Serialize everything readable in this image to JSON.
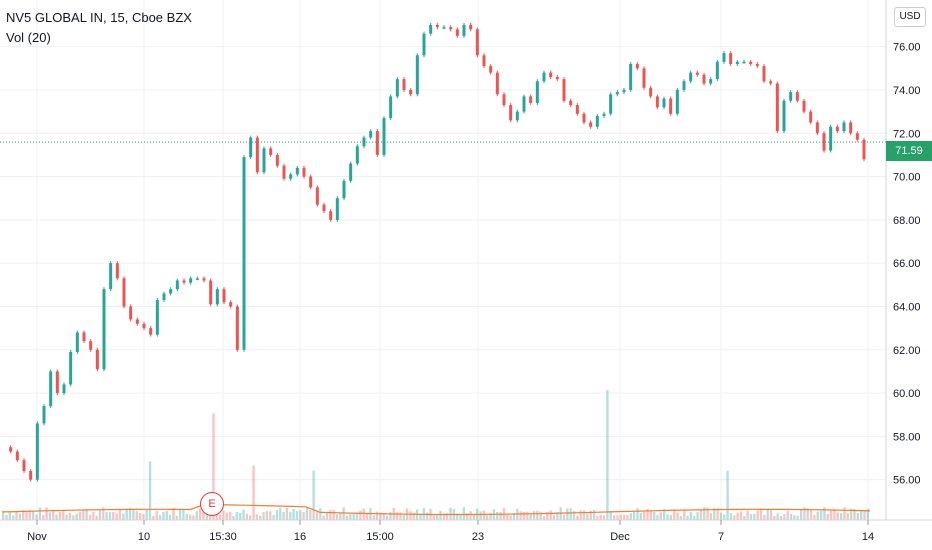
{
  "chart_data": {
    "type": "candlestick",
    "title": "NV5 GLOBAL IN, 15, Cboe BZX",
    "volume_label": "Vol (20)",
    "currency": "USD",
    "last_price": "71.59",
    "earnings_marker": "E",
    "y_axis": {
      "range": [
        54.6,
        77.6
      ],
      "ticks": [
        "76.00",
        "74.00",
        "72.00",
        "70.00",
        "68.00",
        "66.00",
        "64.00",
        "62.00",
        "60.00",
        "58.00",
        "56.00"
      ]
    },
    "x_axis": {
      "ticks": [
        "Nov",
        "10",
        "15:30",
        "16",
        "15:00",
        "23",
        "Dec",
        "7",
        "14"
      ]
    },
    "grid": true,
    "colors": {
      "up": "#26a69a",
      "down": "#ef5350",
      "vol_ma": "#f57c2b",
      "last_price": "#26a269"
    },
    "price_path": [
      57.5,
      57.3,
      56.9,
      56.4,
      56.0,
      58.6,
      59.4,
      61.0,
      60.0,
      60.4,
      61.9,
      62.8,
      62.4,
      62.0,
      61.1,
      64.8,
      66.0,
      65.3,
      64.0,
      63.4,
      63.2,
      63.0,
      62.7,
      64.3,
      64.6,
      64.8,
      65.2,
      65.1,
      65.3,
      65.3,
      65.2,
      64.1,
      64.8,
      64.2,
      64.0,
      62.0,
      70.9,
      71.8,
      70.2,
      71.3,
      71.0,
      70.5,
      69.9,
      70.1,
      70.4,
      70.0,
      69.5,
      68.7,
      68.4,
      68.0,
      69.0,
      69.8,
      70.6,
      71.4,
      71.8,
      72.1,
      71.0,
      72.7,
      73.7,
      74.5,
      74.0,
      73.8,
      75.6,
      76.6,
      77.0,
      76.9,
      76.9,
      76.8,
      76.5,
      77.0,
      76.8,
      75.6,
      75.1,
      74.8,
      73.8,
      73.3,
      72.6,
      73.0,
      73.7,
      73.4,
      74.4,
      74.8,
      74.6,
      74.5,
      73.5,
      73.3,
      72.9,
      72.5,
      72.3,
      72.8,
      72.9,
      73.8,
      73.9,
      74.0,
      75.2,
      75.0,
      74.1,
      73.7,
      73.2,
      73.6,
      72.9,
      74.0,
      74.4,
      74.8,
      74.7,
      74.3,
      74.5,
      75.3,
      75.7,
      75.2,
      75.3,
      75.3,
      75.2,
      75.1,
      74.4,
      74.3,
      72.1,
      73.5,
      73.9,
      73.5,
      73.0,
      72.5,
      72.0,
      71.2,
      72.3,
      72.1,
      72.5,
      72.0,
      71.7,
      70.8
    ],
    "volume_spikes": [
      {
        "at": 0.168,
        "value": 0.45
      },
      {
        "at": 0.244,
        "value": 0.82
      },
      {
        "at": 0.29,
        "value": 0.42
      },
      {
        "at": 0.357,
        "value": 0.38
      },
      {
        "at": 0.697,
        "value": 1.0
      },
      {
        "at": 0.835,
        "value": 0.38
      }
    ]
  }
}
